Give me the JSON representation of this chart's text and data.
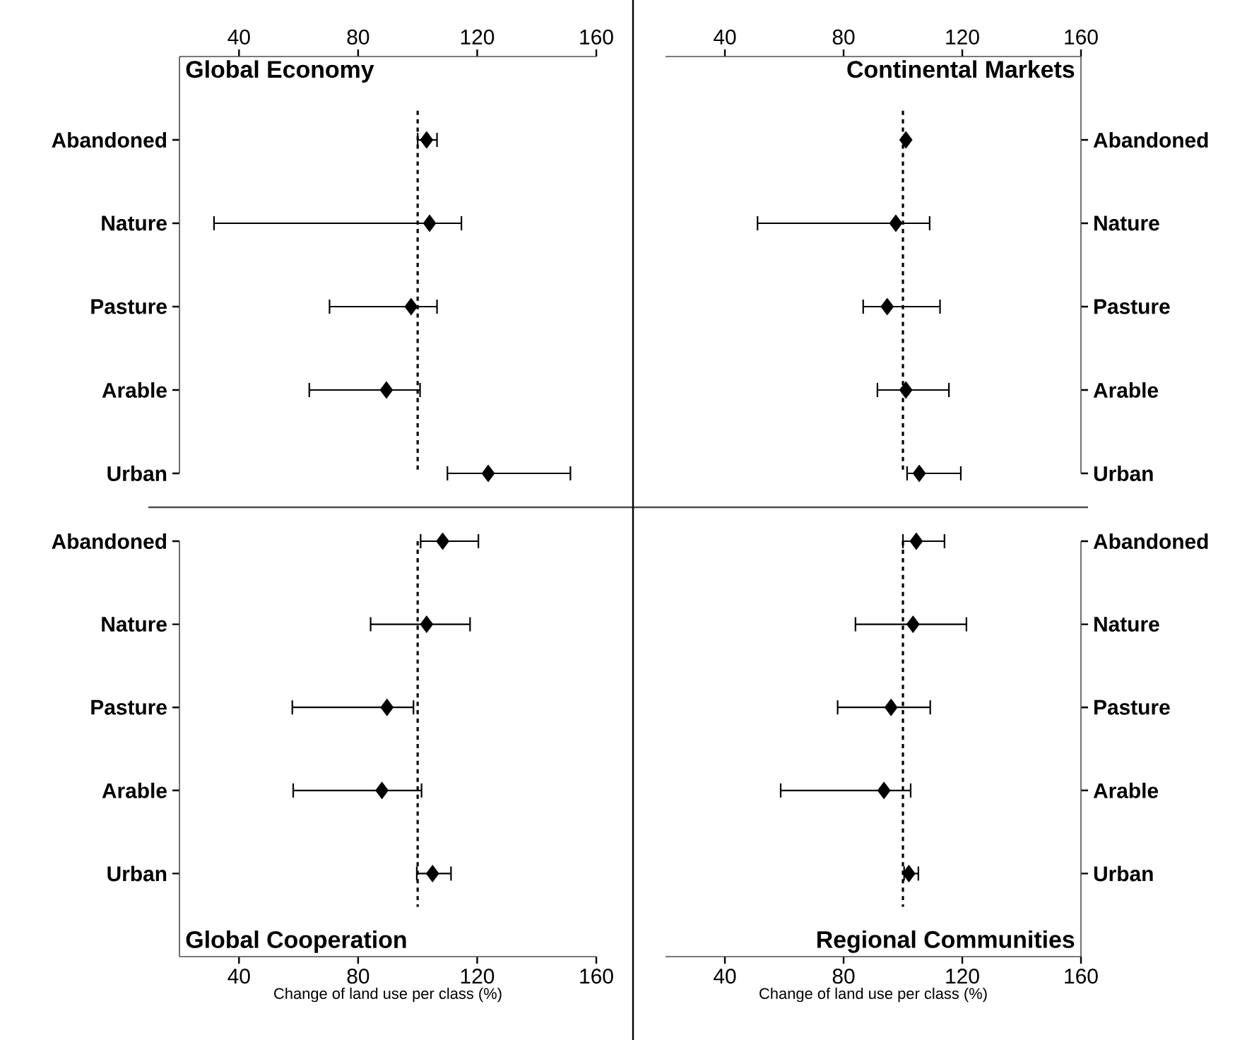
{
  "chart_data": [
    {
      "type": "scatter",
      "orientation": "horizontal",
      "title": "Global Economy",
      "categories": [
        "Abandoned",
        "Nature",
        "Pasture",
        "Arable",
        "Urban"
      ],
      "values": [
        103,
        104,
        97.8,
        89.5,
        123.7
      ],
      "errors": [
        [
          100,
          106.5
        ],
        [
          31.6,
          114.7
        ],
        [
          70.4,
          106.5
        ],
        [
          63.6,
          100.8
        ],
        [
          110,
          151.3
        ]
      ],
      "color": "#000000",
      "marker": "diamond",
      "xlim": [
        20,
        160
      ],
      "xticks": [
        40,
        80,
        120,
        160
      ],
      "ref_lines": [
        {
          "axis": "x",
          "value": 100,
          "line_style": "dashed"
        }
      ]
    },
    {
      "type": "scatter",
      "orientation": "horizontal",
      "title": "Continental Markets",
      "categories": [
        "Abandoned",
        "Nature",
        "Pasture",
        "Arable",
        "Urban"
      ],
      "values": [
        101,
        97.6,
        94.7,
        101,
        105.5
      ],
      "errors": [
        null,
        [
          51,
          109
        ],
        [
          86.6,
          112.5
        ],
        [
          91.4,
          115.5
        ],
        [
          101.4,
          119.5
        ]
      ],
      "color": "#000000",
      "marker": "diamond",
      "xlim": [
        20,
        160
      ],
      "xticks": [
        40,
        80,
        120,
        160
      ],
      "ref_lines": [
        {
          "axis": "x",
          "value": 100,
          "line_style": "dashed"
        }
      ]
    },
    {
      "type": "scatter",
      "orientation": "horizontal",
      "title": "Global Cooperation",
      "xlabel": "Change of land use per class (%)",
      "categories": [
        "Abandoned",
        "Nature",
        "Pasture",
        "Arable",
        "Urban"
      ],
      "values": [
        108.4,
        103,
        89.7,
        88,
        105
      ],
      "errors": [
        [
          101,
          120.4
        ],
        [
          84.2,
          117.6
        ],
        [
          57.9,
          98.6
        ],
        [
          58.2,
          101.3
        ],
        [
          99.7,
          111.2
        ]
      ],
      "color": "#000000",
      "marker": "diamond",
      "xlim": [
        20,
        160
      ],
      "xticks": [
        40,
        80,
        120,
        160
      ],
      "ref_lines": [
        {
          "axis": "x",
          "value": 100,
          "line_style": "dashed"
        }
      ]
    },
    {
      "type": "scatter",
      "orientation": "horizontal",
      "title": "Regional Communities",
      "xlabel": "Change of land use per class (%)",
      "categories": [
        "Abandoned",
        "Nature",
        "Pasture",
        "Arable",
        "Urban"
      ],
      "values": [
        104.5,
        103.4,
        96,
        93.6,
        102
      ],
      "errors": [
        [
          100,
          114
        ],
        [
          84,
          121.4
        ],
        [
          78,
          109.2
        ],
        [
          58.8,
          102.6
        ],
        [
          100.4,
          105.2
        ]
      ],
      "color": "#000000",
      "marker": "diamond",
      "xlim": [
        20,
        160
      ],
      "xticks": [
        40,
        80,
        120,
        160
      ],
      "ref_lines": [
        {
          "axis": "x",
          "value": 100,
          "line_style": "dashed"
        }
      ]
    }
  ]
}
